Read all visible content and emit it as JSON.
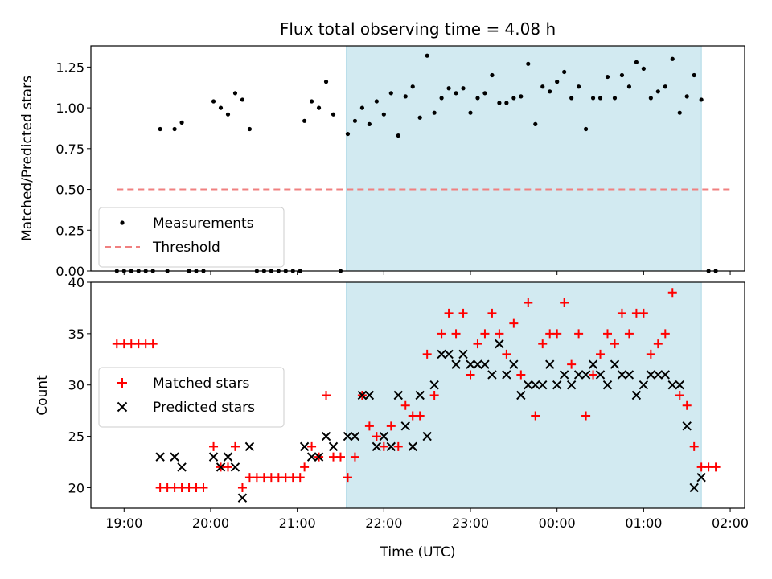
{
  "chart_data": [
    {
      "type": "scatter",
      "title": "Flux total observing time = 4.08 h",
      "xlabel": "",
      "ylabel": "Matched/Predicted stars",
      "xlim": [
        "18:37",
        "26:10"
      ],
      "ylim": [
        0,
        1.38
      ],
      "yticks": [
        0.0,
        0.25,
        0.5,
        0.75,
        1.0,
        1.25
      ],
      "ytick_labels": [
        "0.00",
        "0.25",
        "0.50",
        "0.75",
        "1.00",
        "1.25"
      ],
      "shaded_x_range": [
        "21:34",
        "25:40"
      ],
      "legend": {
        "position": "lower-left",
        "entries": [
          {
            "name": "Measurements",
            "marker": "dot",
            "color": "#000000"
          },
          {
            "name": "Threshold",
            "marker": "dashed-line",
            "color": "#f08080"
          }
        ]
      },
      "series": [
        {
          "name": "Threshold",
          "style": "dashed-line",
          "color": "#f08080",
          "points": [
            [
              "18:55",
              0.5
            ],
            [
              "26:00",
              0.5
            ]
          ]
        },
        {
          "name": "Measurements",
          "style": "dot",
          "color": "#000000",
          "points": [
            [
              "18:55",
              0
            ],
            [
              "19:00",
              0
            ],
            [
              "19:05",
              0
            ],
            [
              "19:10",
              0
            ],
            [
              "19:15",
              0
            ],
            [
              "19:20",
              0
            ],
            [
              "19:25",
              0.87
            ],
            [
              "19:30",
              0
            ],
            [
              "19:35",
              0.87
            ],
            [
              "19:40",
              0.91
            ],
            [
              "19:45",
              0
            ],
            [
              "19:50",
              0
            ],
            [
              "19:55",
              0
            ],
            [
              "20:02",
              1.04
            ],
            [
              "20:07",
              1.0
            ],
            [
              "20:12",
              0.96
            ],
            [
              "20:17",
              1.09
            ],
            [
              "20:22",
              1.05
            ],
            [
              "20:27",
              0.87
            ],
            [
              "20:32",
              0
            ],
            [
              "20:37",
              0
            ],
            [
              "20:42",
              0
            ],
            [
              "20:47",
              0
            ],
            [
              "20:52",
              0
            ],
            [
              "20:57",
              0
            ],
            [
              "21:02",
              0
            ],
            [
              "21:05",
              0.92
            ],
            [
              "21:10",
              1.04
            ],
            [
              "21:15",
              1.0
            ],
            [
              "21:20",
              1.16
            ],
            [
              "21:25",
              0.96
            ],
            [
              "21:30",
              0
            ],
            [
              "21:35",
              0.84
            ],
            [
              "21:40",
              0.92
            ],
            [
              "21:45",
              1.0
            ],
            [
              "21:50",
              0.9
            ],
            [
              "21:55",
              1.04
            ],
            [
              "22:00",
              0.96
            ],
            [
              "22:05",
              1.09
            ],
            [
              "22:10",
              0.83
            ],
            [
              "22:15",
              1.07
            ],
            [
              "22:20",
              1.13
            ],
            [
              "22:25",
              0.94
            ],
            [
              "22:30",
              1.32
            ],
            [
              "22:35",
              0.97
            ],
            [
              "22:40",
              1.06
            ],
            [
              "22:45",
              1.12
            ],
            [
              "22:50",
              1.09
            ],
            [
              "22:55",
              1.12
            ],
            [
              "23:00",
              0.97
            ],
            [
              "23:05",
              1.06
            ],
            [
              "23:10",
              1.09
            ],
            [
              "23:15",
              1.2
            ],
            [
              "23:20",
              1.03
            ],
            [
              "23:25",
              1.03
            ],
            [
              "23:30",
              1.06
            ],
            [
              "23:35",
              1.07
            ],
            [
              "23:40",
              1.27
            ],
            [
              "23:45",
              0.9
            ],
            [
              "23:50",
              1.13
            ],
            [
              "23:55",
              1.1
            ],
            [
              "24:00",
              1.16
            ],
            [
              "24:05",
              1.22
            ],
            [
              "24:10",
              1.06
            ],
            [
              "24:15",
              1.13
            ],
            [
              "24:20",
              0.87
            ],
            [
              "24:25",
              1.06
            ],
            [
              "24:30",
              1.06
            ],
            [
              "24:35",
              1.19
            ],
            [
              "24:40",
              1.06
            ],
            [
              "24:45",
              1.2
            ],
            [
              "24:50",
              1.13
            ],
            [
              "24:55",
              1.28
            ],
            [
              "25:00",
              1.24
            ],
            [
              "25:05",
              1.06
            ],
            [
              "25:10",
              1.1
            ],
            [
              "25:15",
              1.13
            ],
            [
              "25:20",
              1.3
            ],
            [
              "25:25",
              0.97
            ],
            [
              "25:30",
              1.07
            ],
            [
              "25:35",
              1.2
            ],
            [
              "25:40",
              1.05
            ],
            [
              "25:45",
              0
            ],
            [
              "25:50",
              0
            ]
          ]
        }
      ]
    },
    {
      "type": "scatter",
      "title": "",
      "xlabel": "Time (UTC)",
      "ylabel": "Count",
      "xlim": [
        "18:37",
        "26:10"
      ],
      "ylim": [
        18,
        40
      ],
      "yticks": [
        20,
        25,
        30,
        35,
        40
      ],
      "ytick_labels": [
        "20",
        "25",
        "30",
        "35",
        "40"
      ],
      "xticks": [
        "19:00",
        "20:00",
        "21:00",
        "22:00",
        "23:00",
        "24:00",
        "25:00",
        "26:00"
      ],
      "xtick_labels": [
        "19:00",
        "20:00",
        "21:00",
        "22:00",
        "23:00",
        "00:00",
        "01:00",
        "02:00"
      ],
      "shaded_x_range": [
        "21:34",
        "25:40"
      ],
      "legend": {
        "position": "center-left",
        "entries": [
          {
            "name": "Matched stars",
            "marker": "plus",
            "color": "#ff0000"
          },
          {
            "name": "Predicted stars",
            "marker": "x",
            "color": "#000000"
          }
        ]
      },
      "series": [
        {
          "name": "Matched stars",
          "style": "plus",
          "color": "#ff0000",
          "points": [
            [
              "18:55",
              34
            ],
            [
              "19:00",
              34
            ],
            [
              "19:05",
              34
            ],
            [
              "19:10",
              34
            ],
            [
              "19:15",
              34
            ],
            [
              "19:20",
              34
            ],
            [
              "19:25",
              20
            ],
            [
              "19:30",
              20
            ],
            [
              "19:35",
              20
            ],
            [
              "19:40",
              20
            ],
            [
              "19:45",
              20
            ],
            [
              "19:50",
              20
            ],
            [
              "19:55",
              20
            ],
            [
              "20:02",
              24
            ],
            [
              "20:07",
              22
            ],
            [
              "20:12",
              22
            ],
            [
              "20:17",
              24
            ],
            [
              "20:22",
              20
            ],
            [
              "20:27",
              21
            ],
            [
              "20:32",
              21
            ],
            [
              "20:37",
              21
            ],
            [
              "20:42",
              21
            ],
            [
              "20:47",
              21
            ],
            [
              "20:52",
              21
            ],
            [
              "20:57",
              21
            ],
            [
              "21:02",
              21
            ],
            [
              "21:05",
              22
            ],
            [
              "21:10",
              24
            ],
            [
              "21:15",
              23
            ],
            [
              "21:20",
              29
            ],
            [
              "21:25",
              23
            ],
            [
              "21:30",
              23
            ],
            [
              "21:35",
              21
            ],
            [
              "21:40",
              23
            ],
            [
              "21:45",
              29
            ],
            [
              "21:50",
              26
            ],
            [
              "21:55",
              25
            ],
            [
              "22:00",
              24
            ],
            [
              "22:05",
              26
            ],
            [
              "22:10",
              24
            ],
            [
              "22:15",
              28
            ],
            [
              "22:20",
              27
            ],
            [
              "22:25",
              27
            ],
            [
              "22:30",
              33
            ],
            [
              "22:35",
              29
            ],
            [
              "22:40",
              35
            ],
            [
              "22:45",
              37
            ],
            [
              "22:50",
              35
            ],
            [
              "22:55",
              37
            ],
            [
              "23:00",
              31
            ],
            [
              "23:05",
              34
            ],
            [
              "23:10",
              35
            ],
            [
              "23:15",
              37
            ],
            [
              "23:20",
              35
            ],
            [
              "23:25",
              33
            ],
            [
              "23:30",
              36
            ],
            [
              "23:35",
              31
            ],
            [
              "23:40",
              38
            ],
            [
              "23:45",
              27
            ],
            [
              "23:50",
              34
            ],
            [
              "23:55",
              35
            ],
            [
              "24:00",
              35
            ],
            [
              "24:05",
              38
            ],
            [
              "24:10",
              32
            ],
            [
              "24:15",
              35
            ],
            [
              "24:20",
              27
            ],
            [
              "24:25",
              31
            ],
            [
              "24:30",
              33
            ],
            [
              "24:35",
              35
            ],
            [
              "24:40",
              34
            ],
            [
              "24:45",
              37
            ],
            [
              "24:50",
              35
            ],
            [
              "24:55",
              37
            ],
            [
              "25:00",
              37
            ],
            [
              "25:05",
              33
            ],
            [
              "25:10",
              34
            ],
            [
              "25:15",
              35
            ],
            [
              "25:20",
              39
            ],
            [
              "25:25",
              29
            ],
            [
              "25:30",
              28
            ],
            [
              "25:35",
              24
            ],
            [
              "25:40",
              22
            ],
            [
              "25:45",
              22
            ],
            [
              "25:50",
              22
            ]
          ]
        },
        {
          "name": "Predicted stars",
          "style": "x",
          "color": "#000000",
          "points": [
            [
              "19:25",
              23
            ],
            [
              "19:35",
              23
            ],
            [
              "19:40",
              22
            ],
            [
              "20:02",
              23
            ],
            [
              "20:07",
              22
            ],
            [
              "20:12",
              23
            ],
            [
              "20:17",
              22
            ],
            [
              "20:22",
              19
            ],
            [
              "20:27",
              24
            ],
            [
              "21:05",
              24
            ],
            [
              "21:10",
              23
            ],
            [
              "21:15",
              23
            ],
            [
              "21:20",
              25
            ],
            [
              "21:25",
              24
            ],
            [
              "21:35",
              25
            ],
            [
              "21:40",
              25
            ],
            [
              "21:45",
              29
            ],
            [
              "21:50",
              29
            ],
            [
              "21:55",
              24
            ],
            [
              "22:00",
              25
            ],
            [
              "22:05",
              24
            ],
            [
              "22:10",
              29
            ],
            [
              "22:15",
              26
            ],
            [
              "22:20",
              24
            ],
            [
              "22:25",
              29
            ],
            [
              "22:30",
              25
            ],
            [
              "22:35",
              30
            ],
            [
              "22:40",
              33
            ],
            [
              "22:45",
              33
            ],
            [
              "22:50",
              32
            ],
            [
              "22:55",
              33
            ],
            [
              "23:00",
              32
            ],
            [
              "23:05",
              32
            ],
            [
              "23:10",
              32
            ],
            [
              "23:15",
              31
            ],
            [
              "23:20",
              34
            ],
            [
              "23:25",
              31
            ],
            [
              "23:30",
              32
            ],
            [
              "23:35",
              29
            ],
            [
              "23:40",
              30
            ],
            [
              "23:45",
              30
            ],
            [
              "23:50",
              30
            ],
            [
              "23:55",
              32
            ],
            [
              "24:00",
              30
            ],
            [
              "24:05",
              31
            ],
            [
              "24:10",
              30
            ],
            [
              "24:15",
              31
            ],
            [
              "24:20",
              31
            ],
            [
              "24:25",
              32
            ],
            [
              "24:30",
              31
            ],
            [
              "24:35",
              30
            ],
            [
              "24:40",
              32
            ],
            [
              "24:45",
              31
            ],
            [
              "24:50",
              31
            ],
            [
              "24:55",
              29
            ],
            [
              "25:00",
              30
            ],
            [
              "25:05",
              31
            ],
            [
              "25:10",
              31
            ],
            [
              "25:15",
              31
            ],
            [
              "25:20",
              30
            ],
            [
              "25:25",
              30
            ],
            [
              "25:30",
              26
            ],
            [
              "25:35",
              20
            ],
            [
              "25:40",
              21
            ]
          ]
        }
      ]
    }
  ],
  "colors": {
    "shade": "#add8e6",
    "matched": "#ff0000",
    "predicted": "#000000",
    "threshold": "#f08080",
    "measurement": "#000000"
  }
}
